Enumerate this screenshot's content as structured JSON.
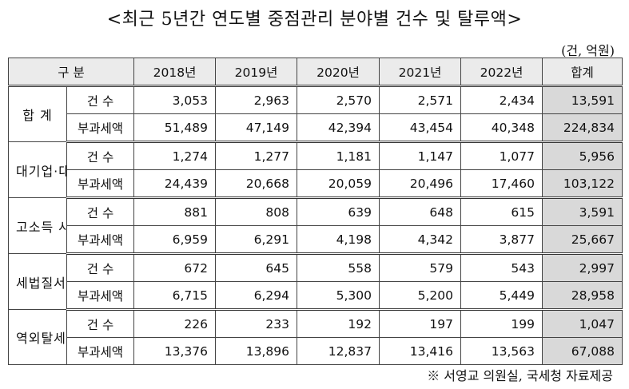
{
  "title": "<최근 5년간 연도별 중점관리 분야별 건수 및 탈루액>",
  "unit": "(건, 억원)",
  "table": {
    "headers": [
      "구 분",
      "2018년",
      "2019년",
      "2020년",
      "2021년",
      "2022년",
      "합계"
    ],
    "groups": [
      {
        "category": "합 계",
        "rows": [
          {
            "label": "건 수",
            "values": [
              "3,053",
              "2,963",
              "2,570",
              "2,571",
              "2,434"
            ],
            "total": "13,591"
          },
          {
            "label": "부과세액",
            "values": [
              "51,489",
              "47,149",
              "42,394",
              "43,454",
              "40,348"
            ],
            "total": "224,834"
          }
        ]
      },
      {
        "category": "대기업·대재산가",
        "rows": [
          {
            "label": "건 수",
            "values": [
              "1,274",
              "1,277",
              "1,181",
              "1,147",
              "1,077"
            ],
            "total": "5,956"
          },
          {
            "label": "부과세액",
            "values": [
              "24,439",
              "20,668",
              "20,059",
              "20,496",
              "17,460"
            ],
            "total": "103,122"
          }
        ]
      },
      {
        "category": "고소득 사업자",
        "rows": [
          {
            "label": "건 수",
            "values": [
              "881",
              "808",
              "639",
              "648",
              "615"
            ],
            "total": "3,591"
          },
          {
            "label": "부과세액",
            "values": [
              "6,959",
              "6,291",
              "4,198",
              "4,342",
              "3,877"
            ],
            "total": "25,667"
          }
        ]
      },
      {
        "category": "세법질서 민생침해",
        "rows": [
          {
            "label": "건 수",
            "values": [
              "672",
              "645",
              "558",
              "579",
              "543"
            ],
            "total": "2,997"
          },
          {
            "label": "부과세액",
            "values": [
              "6,715",
              "6,294",
              "5,300",
              "5,200",
              "5,449"
            ],
            "total": "28,958"
          }
        ]
      },
      {
        "category": "역외탈세",
        "rows": [
          {
            "label": "건 수",
            "values": [
              "226",
              "233",
              "192",
              "197",
              "199"
            ],
            "total": "1,047"
          },
          {
            "label": "부과세액",
            "values": [
              "13,376",
              "13,896",
              "12,837",
              "13,416",
              "13,563"
            ],
            "total": "67,088"
          }
        ]
      }
    ]
  },
  "source": "※ 서영교 의원실, 국세청 자료제공"
}
